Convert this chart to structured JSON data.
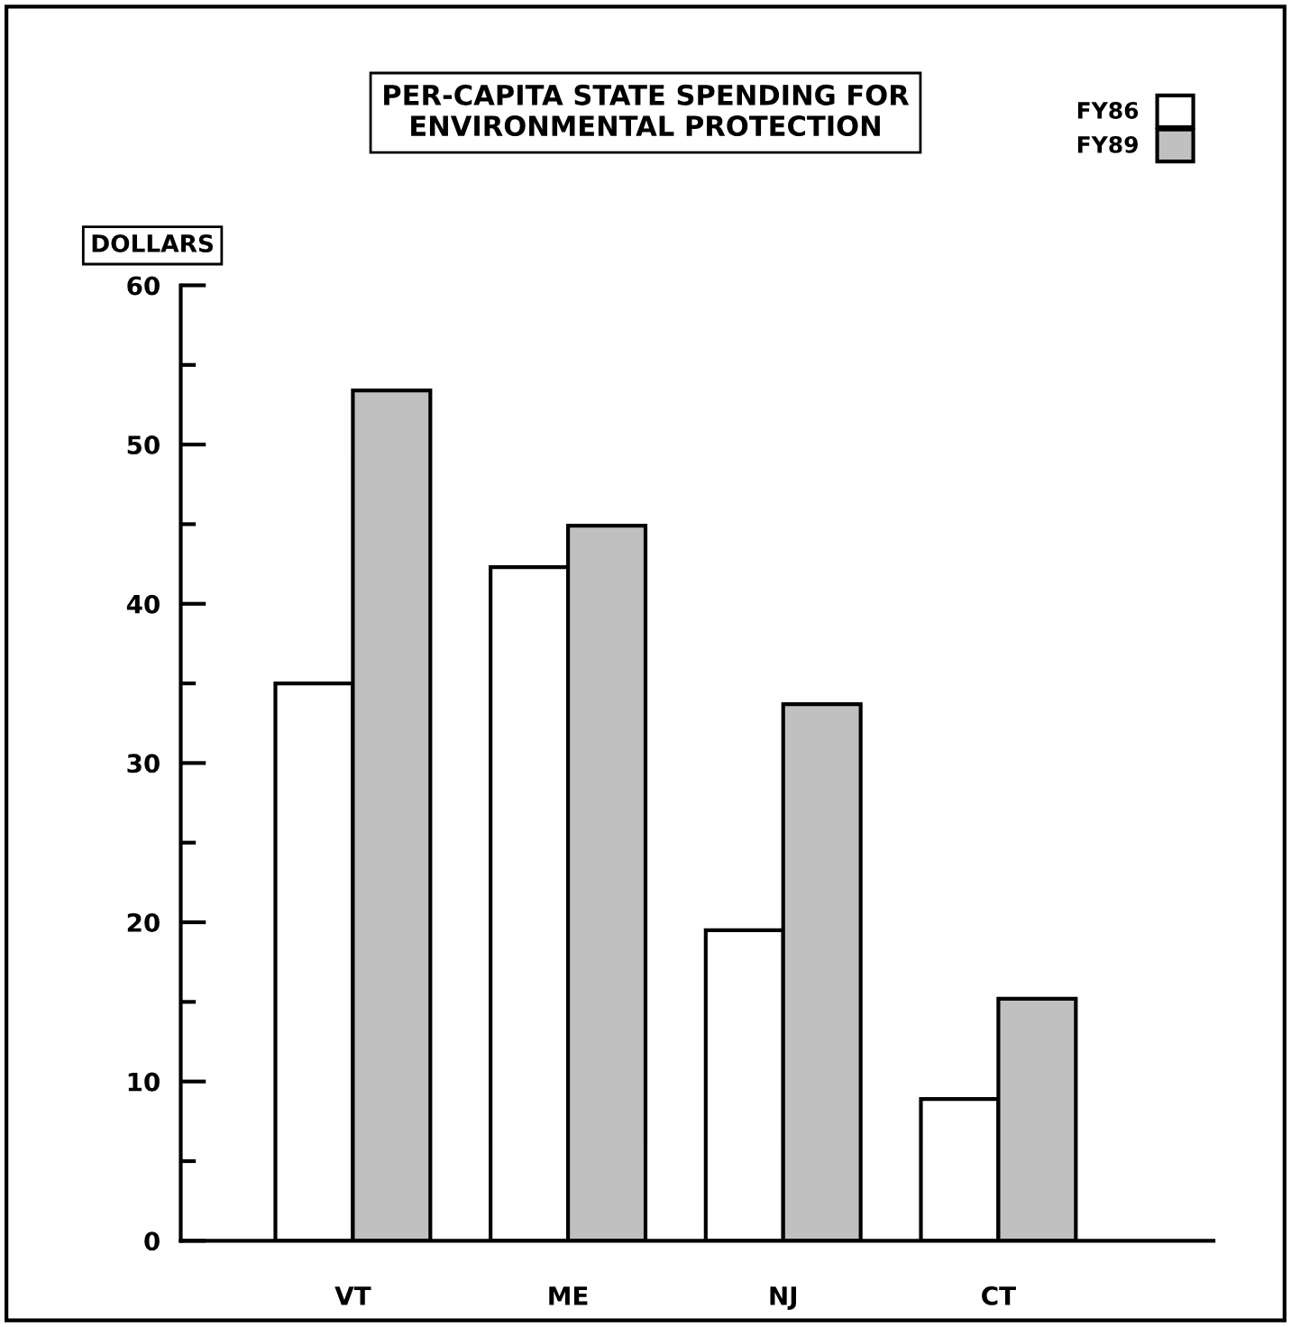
{
  "chart_data": {
    "type": "bar",
    "title": "PER-CAPITA STATE SPENDING FOR\nENVIRONMENTAL PROTECTION",
    "ylabel": "DOLLARS",
    "categories": [
      "VT",
      "ME",
      "NJ",
      "CT"
    ],
    "series": [
      {
        "name": "FY86",
        "color": "#ffffff",
        "values": [
          35,
          42.3,
          19.5,
          8.9
        ]
      },
      {
        "name": "FY89",
        "color": "#c0c0c0",
        "values": [
          53.4,
          44.9,
          33.7,
          15.2
        ]
      }
    ],
    "ylim": [
      0,
      60
    ],
    "yticks": [
      0,
      {
        "value": 5,
        "label": null
      },
      10,
      {
        "value": 15,
        "label": null
      },
      20,
      {
        "value": 25,
        "label": null
      },
      30,
      {
        "value": 35,
        "label": null
      },
      40,
      {
        "value": 45,
        "label": null
      },
      50,
      {
        "value": 55,
        "label": null
      },
      60
    ],
    "grid": false,
    "legend": "top right"
  }
}
